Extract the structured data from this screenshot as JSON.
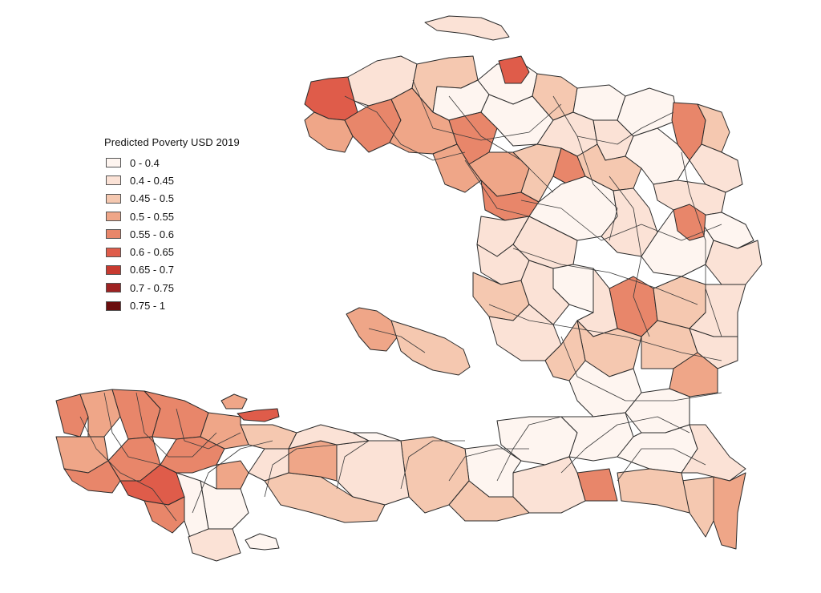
{
  "legend": {
    "title": "Predicted Poverty USD 2019",
    "classes": [
      {
        "label": "0 - 0.4",
        "color": "#fef5f0"
      },
      {
        "label": "0.4 - 0.45",
        "color": "#fbe2d6"
      },
      {
        "label": "0.45 - 0.5",
        "color": "#f5c8b0"
      },
      {
        "label": "0.5 - 0.55",
        "color": "#efa688"
      },
      {
        "label": "0.55 - 0.6",
        "color": "#e8866a"
      },
      {
        "label": "0.6 - 0.65",
        "color": "#df5c4a"
      },
      {
        "label": "0.65 - 0.7",
        "color": "#c73a30"
      },
      {
        "label": "0.7 - 0.75",
        "color": "#9e2222"
      },
      {
        "label": "0.75 - 1",
        "color": "#6b0e0e"
      }
    ]
  }
}
